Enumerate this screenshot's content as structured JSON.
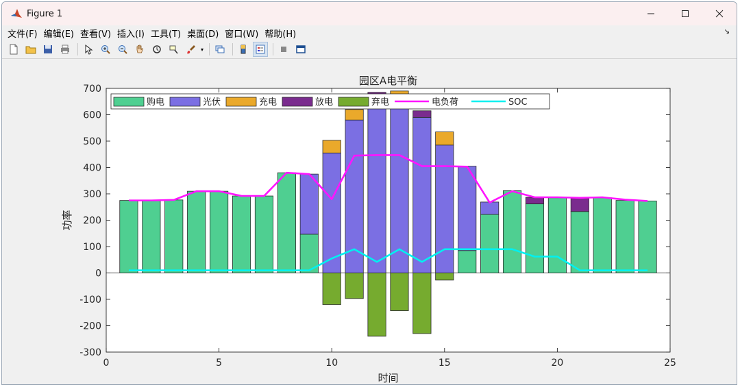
{
  "window": {
    "title": "Figure 1"
  },
  "menu": [
    {
      "label": "文件(F)"
    },
    {
      "label": "编辑(E)"
    },
    {
      "label": "查看(V)"
    },
    {
      "label": "插入(I)"
    },
    {
      "label": "工具(T)"
    },
    {
      "label": "桌面(D)"
    },
    {
      "label": "窗口(W)"
    },
    {
      "label": "帮助(H)"
    }
  ],
  "toolbar_icons": [
    "new-figure-icon",
    "open-icon",
    "save-icon",
    "print-icon",
    "pointer-icon",
    "zoom-in-icon",
    "zoom-out-icon",
    "pan-hand-icon",
    "rotate-3d-icon",
    "data-cursor-icon",
    "brush-icon",
    "link-icon",
    "colorbar-icon",
    "legend-icon",
    "hide-tools-icon",
    "dock-figure-icon"
  ],
  "colors": {
    "buy": "#4fcf91",
    "pv": "#7b6fe3",
    "charge": "#eaa92b",
    "discharge": "#7a2c8e",
    "curtail": "#76ab2f",
    "load": "#ff14ff",
    "soc": "#00f0f0",
    "edge": "#2b2b2b"
  },
  "chart_data": {
    "type": "bar",
    "title": "园区A电平衡",
    "xlabel": "时间",
    "ylabel": "功率",
    "xlim": [
      0,
      25
    ],
    "ylim": [
      -300,
      700
    ],
    "xticks": [
      0,
      5,
      10,
      15,
      20,
      25
    ],
    "yticks": [
      -300,
      -200,
      -100,
      0,
      100,
      200,
      300,
      400,
      500,
      600,
      700
    ],
    "legend_position": "top-left",
    "x": [
      1,
      2,
      3,
      4,
      5,
      6,
      7,
      8,
      9,
      10,
      11,
      12,
      13,
      14,
      15,
      16,
      17,
      18,
      19,
      20,
      21,
      22,
      23,
      24
    ],
    "stacked_series": [
      {
        "name": "购电",
        "key": "buy",
        "values": [
          275,
          275,
          277,
          310,
          310,
          292,
          292,
          380,
          147,
          0,
          0,
          0,
          0,
          0,
          0,
          85,
          222,
          312,
          262,
          285,
          233,
          285,
          275,
          273
        ]
      },
      {
        "name": "光伏",
        "key": "pv",
        "values": [
          0,
          0,
          0,
          0,
          0,
          0,
          0,
          0,
          228,
          455,
          580,
          630,
          640,
          590,
          485,
          320,
          47,
          0,
          0,
          0,
          0,
          0,
          0,
          0
        ]
      },
      {
        "name": "充电",
        "key": "charge",
        "values": [
          0,
          0,
          0,
          0,
          0,
          0,
          0,
          0,
          0,
          48,
          40,
          0,
          50,
          0,
          50,
          0,
          0,
          0,
          0,
          0,
          0,
          0,
          0,
          0
        ]
      },
      {
        "name": "放电",
        "key": "discharge",
        "values": [
          0,
          0,
          0,
          0,
          0,
          0,
          0,
          0,
          0,
          0,
          0,
          55,
          0,
          25,
          0,
          0,
          0,
          0,
          25,
          0,
          50,
          0,
          0,
          0
        ]
      },
      {
        "name": "弃电",
        "key": "curtail",
        "values": [
          0,
          0,
          0,
          0,
          0,
          0,
          0,
          0,
          0,
          -120,
          -97,
          -240,
          -143,
          -230,
          -27,
          0,
          0,
          0,
          0,
          0,
          0,
          0,
          0,
          0
        ]
      }
    ],
    "line_series": [
      {
        "name": "电负荷",
        "key": "load",
        "values": [
          275,
          275,
          277,
          310,
          310,
          292,
          292,
          380,
          375,
          280,
          445,
          447,
          447,
          405,
          405,
          403,
          267,
          310,
          287,
          287,
          285,
          287,
          278,
          273
        ]
      },
      {
        "name": "SOC",
        "key": "soc",
        "values": [
          10,
          10,
          10,
          10,
          10,
          10,
          10,
          10,
          10,
          55,
          90,
          42,
          90,
          42,
          90,
          90,
          90,
          90,
          62,
          62,
          10,
          10,
          10,
          10
        ]
      }
    ]
  }
}
